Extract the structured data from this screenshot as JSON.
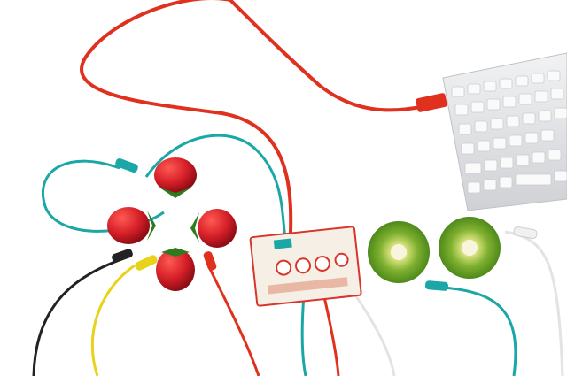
{
  "scene": {
    "description_tag": "photo",
    "colors": {
      "red_cable": "#e0301e",
      "teal_cable": "#1aa7a6",
      "black_cable": "#222222",
      "yellow_cable": "#e8d21a",
      "white_cable": "#e9e9e9",
      "keyboard": "#e8e9eb",
      "strawberry": "#d0202a",
      "kiwi_flesh": "#6fa52a",
      "board": "#f5efe6",
      "board_trim": "#d8362a"
    }
  }
}
